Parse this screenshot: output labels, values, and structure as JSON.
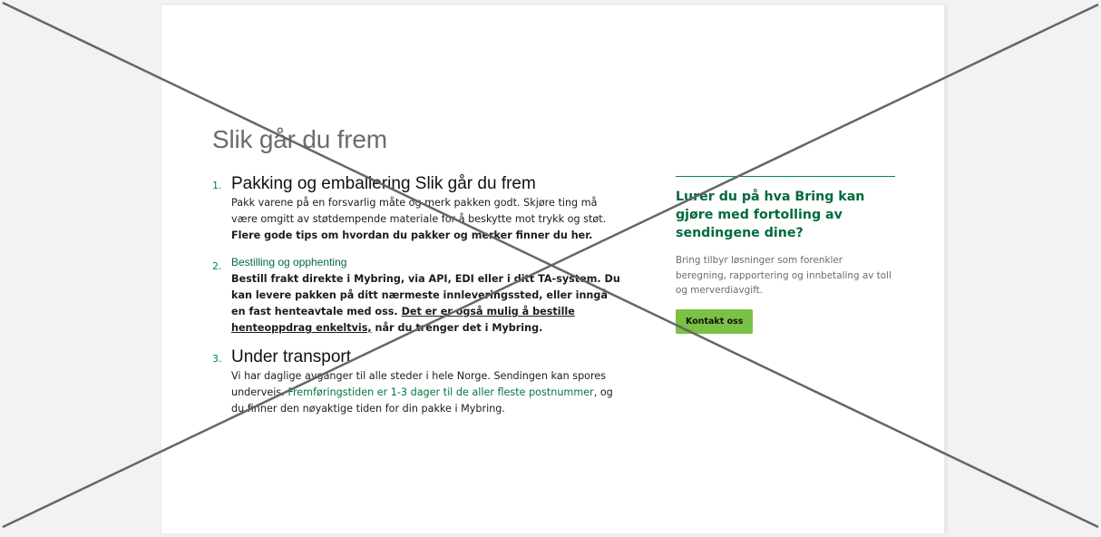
{
  "title": "Slik går du frem",
  "steps": [
    {
      "number": "1.",
      "title": "Pakking og emballering Slik går du frem",
      "text": "Pakk varene på en forsvarlig måte og merk pakken godt. Skjøre ting må være omgitt av støtdempende materiale for å beskytte mot trykk og støt. ",
      "bold": "Flere gode tips om hvordan du pakker og merker finner du her."
    },
    {
      "number": "2.",
      "title": "Bestilling og opphenting",
      "text": "Bestill frakt direkte i Mybring, via API, EDI eller i ditt TA-system. Du kan levere pakken på ditt nærmeste innleveringssted, eller inngå en fast henteavtale med oss. ",
      "link": "Det er er også mulig å bestille henteoppdrag enkeltvis,",
      "after": " når du trenger det i Mybring."
    },
    {
      "number": "3.",
      "title": "Under transport",
      "text": "Vi har daglige avganger til alle steder i hele Norge. Sendingen kan spores underveis. ",
      "link": "Fremføringstiden er 1-3 dager til de aller fleste postnummer",
      "after": ", og du finner den nøyaktige tiden for din pakke i Mybring."
    }
  ],
  "aside": {
    "heading": "Lurer du på hva Bring kan gjøre med fortolling av sendingene dine?",
    "text": "Bring tilbyr løsninger som forenkler beregning, rapportering og innbetaling av toll og merverdiavgift.",
    "button": "Kontakt oss"
  },
  "colors": {
    "accent": "#008a4e",
    "button": "#7bc144",
    "placeholder_cross": "#666666"
  }
}
